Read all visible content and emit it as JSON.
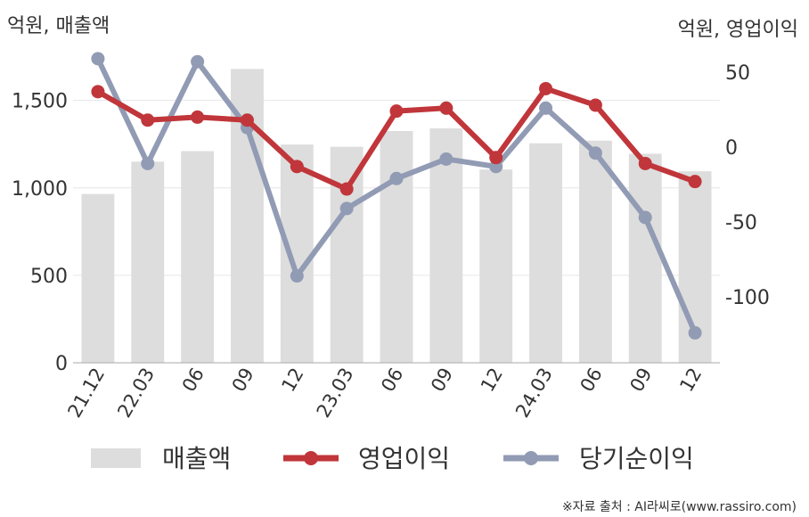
{
  "chart_data": {
    "type": "bar+line",
    "left_unit_label": "억원, 매출액",
    "right_unit_label": "억원, 영업이익",
    "categories": [
      "21.12",
      "22.03",
      "06",
      "09",
      "12",
      "23.03",
      "06",
      "09",
      "12",
      "24.03",
      "06",
      "09",
      "12"
    ],
    "bars": {
      "name": "매출액",
      "color": "#dddddd",
      "axis": "left",
      "values": [
        965,
        1150,
        1210,
        1680,
        1248,
        1235,
        1325,
        1340,
        1105,
        1255,
        1270,
        1195,
        1095
      ]
    },
    "series": [
      {
        "name": "영업이익",
        "color": "#c0363a",
        "axis": "right",
        "values": [
          37,
          18,
          20,
          18,
          -13,
          -28,
          24,
          26,
          -7,
          39,
          28,
          -11,
          -23
        ]
      },
      {
        "name": "당기순이익",
        "color": "#919bb4",
        "axis": "right",
        "values": [
          59,
          -11,
          57,
          13,
          -86,
          -41,
          -21,
          -8,
          -13,
          26,
          -4,
          -47,
          -124
        ]
      }
    ],
    "left_axis": {
      "ylim": [
        0,
        1850
      ],
      "ticks": [
        0,
        500,
        1000,
        1500
      ]
    },
    "right_axis": {
      "ylim": [
        -144,
        72
      ],
      "ticks": [
        50,
        0,
        -50,
        -100
      ]
    },
    "grid": true,
    "legend_position": "bottom"
  },
  "source": "※자료 출처 : AI라씨로(www.rassiro.com)"
}
